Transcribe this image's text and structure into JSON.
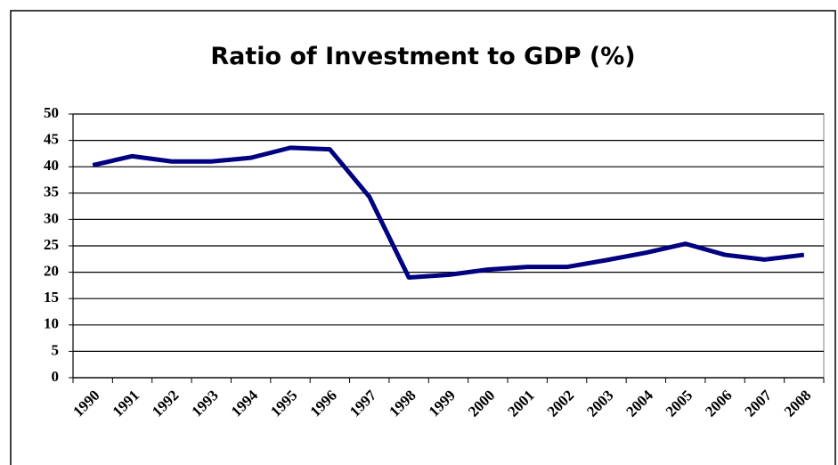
{
  "chart_data": {
    "type": "line",
    "title": "Ratio of Investment to GDP (%)",
    "categories": [
      "1990",
      "1991",
      "1992",
      "1993",
      "1994",
      "1995",
      "1996",
      "1997",
      "1998",
      "1999",
      "2000",
      "2001",
      "2002",
      "2003",
      "2004",
      "2005",
      "2006",
      "2007",
      "2008"
    ],
    "values": [
      40.3,
      42,
      41,
      41,
      41.7,
      43.6,
      43.3,
      34.3,
      19,
      19.5,
      20.5,
      21,
      21,
      22.3,
      23.7,
      25.4,
      23.3,
      22.4,
      23.3
    ],
    "color": "#000080",
    "ylim": [
      0,
      50
    ],
    "yticks": [
      0,
      5,
      10,
      15,
      20,
      25,
      30,
      35,
      40,
      45,
      50
    ],
    "grid": true
  }
}
